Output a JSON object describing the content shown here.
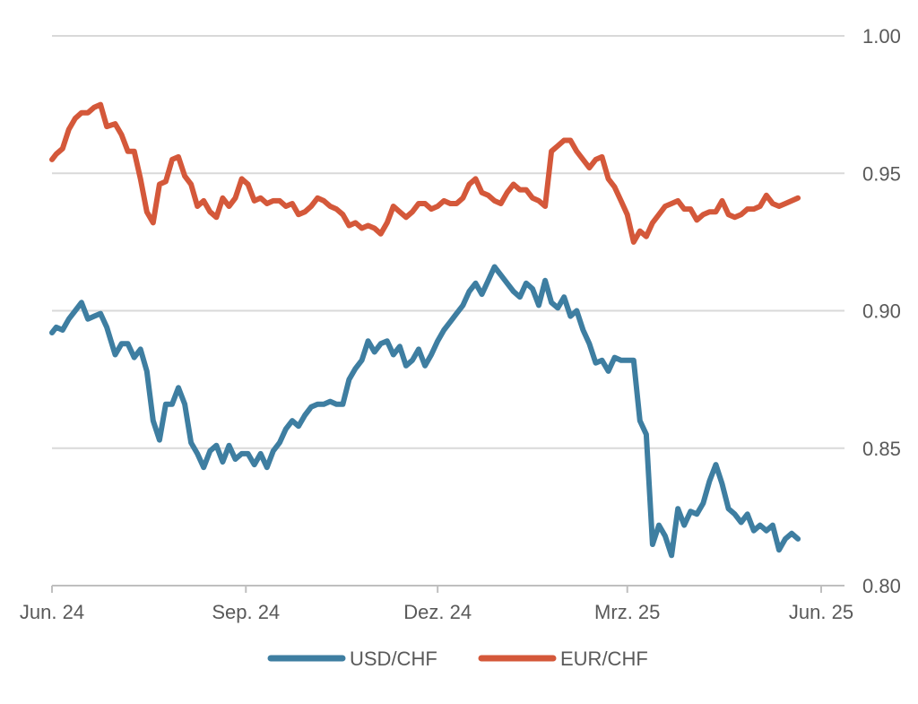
{
  "chart_data": {
    "type": "line",
    "title": "",
    "xlabel": "",
    "ylabel": "",
    "y_axis_position": "right",
    "ylim": [
      0.8,
      1.0
    ],
    "yticks": [
      "1.00",
      "0.95",
      "0.90",
      "0.85",
      "0.80"
    ],
    "ytick_values": [
      1.0,
      0.95,
      0.9,
      0.85,
      0.8
    ],
    "xlim": [
      "2024-06-01",
      "2025-06-02"
    ],
    "xticks": [
      {
        "label": "Jun. 24",
        "date": "2024-06-01"
      },
      {
        "label": "Sep. 24",
        "date": "2024-09-01"
      },
      {
        "label": "Dez. 24",
        "date": "2024-12-01"
      },
      {
        "label": "Mrz. 25",
        "date": "2025-03-01"
      },
      {
        "label": "Jun. 25",
        "date": "2025-06-01"
      }
    ],
    "grid": "horizontal",
    "legend_position": "bottom",
    "series": [
      {
        "name": "USD/CHF",
        "color": "#3e7ea1",
        "points": [
          [
            "2024-06-01",
            0.892
          ],
          [
            "2024-06-03",
            0.894
          ],
          [
            "2024-06-06",
            0.893
          ],
          [
            "2024-06-09",
            0.897
          ],
          [
            "2024-06-12",
            0.9
          ],
          [
            "2024-06-15",
            0.903
          ],
          [
            "2024-06-18",
            0.897
          ],
          [
            "2024-06-21",
            0.898
          ],
          [
            "2024-06-24",
            0.899
          ],
          [
            "2024-06-27",
            0.894
          ],
          [
            "2024-07-01",
            0.884
          ],
          [
            "2024-07-04",
            0.888
          ],
          [
            "2024-07-07",
            0.888
          ],
          [
            "2024-07-10",
            0.883
          ],
          [
            "2024-07-13",
            0.886
          ],
          [
            "2024-07-16",
            0.878
          ],
          [
            "2024-07-19",
            0.86
          ],
          [
            "2024-07-22",
            0.853
          ],
          [
            "2024-07-25",
            0.866
          ],
          [
            "2024-07-28",
            0.866
          ],
          [
            "2024-07-31",
            0.872
          ],
          [
            "2024-08-03",
            0.866
          ],
          [
            "2024-08-06",
            0.852
          ],
          [
            "2024-08-09",
            0.848
          ],
          [
            "2024-08-12",
            0.843
          ],
          [
            "2024-08-15",
            0.849
          ],
          [
            "2024-08-18",
            0.851
          ],
          [
            "2024-08-21",
            0.845
          ],
          [
            "2024-08-24",
            0.851
          ],
          [
            "2024-08-27",
            0.846
          ],
          [
            "2024-08-30",
            0.848
          ],
          [
            "2024-09-02",
            0.848
          ],
          [
            "2024-09-05",
            0.844
          ],
          [
            "2024-09-08",
            0.848
          ],
          [
            "2024-09-11",
            0.843
          ],
          [
            "2024-09-14",
            0.849
          ],
          [
            "2024-09-17",
            0.852
          ],
          [
            "2024-09-20",
            0.857
          ],
          [
            "2024-09-23",
            0.86
          ],
          [
            "2024-09-26",
            0.858
          ],
          [
            "2024-09-29",
            0.862
          ],
          [
            "2024-10-02",
            0.865
          ],
          [
            "2024-10-05",
            0.866
          ],
          [
            "2024-10-08",
            0.866
          ],
          [
            "2024-10-11",
            0.867
          ],
          [
            "2024-10-14",
            0.866
          ],
          [
            "2024-10-17",
            0.866
          ],
          [
            "2024-10-20",
            0.875
          ],
          [
            "2024-10-23",
            0.879
          ],
          [
            "2024-10-26",
            0.882
          ],
          [
            "2024-10-29",
            0.889
          ],
          [
            "2024-11-01",
            0.885
          ],
          [
            "2024-11-04",
            0.888
          ],
          [
            "2024-11-07",
            0.889
          ],
          [
            "2024-11-10",
            0.884
          ],
          [
            "2024-11-13",
            0.887
          ],
          [
            "2024-11-16",
            0.88
          ],
          [
            "2024-11-19",
            0.882
          ],
          [
            "2024-11-22",
            0.886
          ],
          [
            "2024-11-25",
            0.88
          ],
          [
            "2024-11-28",
            0.884
          ],
          [
            "2024-12-01",
            0.889
          ],
          [
            "2024-12-04",
            0.893
          ],
          [
            "2024-12-07",
            0.896
          ],
          [
            "2024-12-10",
            0.899
          ],
          [
            "2024-12-13",
            0.902
          ],
          [
            "2024-12-16",
            0.907
          ],
          [
            "2024-12-19",
            0.91
          ],
          [
            "2024-12-22",
            0.906
          ],
          [
            "2024-12-25",
            0.911
          ],
          [
            "2024-12-28",
            0.916
          ],
          [
            "2024-12-31",
            0.913
          ],
          [
            "2025-01-03",
            0.91
          ],
          [
            "2025-01-06",
            0.907
          ],
          [
            "2025-01-09",
            0.905
          ],
          [
            "2025-01-12",
            0.91
          ],
          [
            "2025-01-15",
            0.908
          ],
          [
            "2025-01-18",
            0.902
          ],
          [
            "2025-01-21",
            0.911
          ],
          [
            "2025-01-24",
            0.903
          ],
          [
            "2025-01-27",
            0.901
          ],
          [
            "2025-01-30",
            0.905
          ],
          [
            "2025-02-02",
            0.898
          ],
          [
            "2025-02-05",
            0.9
          ],
          [
            "2025-02-08",
            0.893
          ],
          [
            "2025-02-11",
            0.888
          ],
          [
            "2025-02-14",
            0.881
          ],
          [
            "2025-02-17",
            0.882
          ],
          [
            "2025-02-20",
            0.878
          ],
          [
            "2025-02-23",
            0.883
          ],
          [
            "2025-02-26",
            0.882
          ],
          [
            "2025-03-01",
            0.882
          ],
          [
            "2025-03-04",
            0.882
          ],
          [
            "2025-03-07",
            0.86
          ],
          [
            "2025-03-10",
            0.855
          ],
          [
            "2025-03-13",
            0.815
          ],
          [
            "2025-03-16",
            0.822
          ],
          [
            "2025-03-19",
            0.818
          ],
          [
            "2025-03-22",
            0.811
          ],
          [
            "2025-03-25",
            0.828
          ],
          [
            "2025-03-28",
            0.822
          ],
          [
            "2025-03-31",
            0.827
          ],
          [
            "2025-04-03",
            0.826
          ],
          [
            "2025-04-06",
            0.83
          ],
          [
            "2025-04-09",
            0.838
          ],
          [
            "2025-04-12",
            0.844
          ],
          [
            "2025-04-15",
            0.837
          ],
          [
            "2025-04-18",
            0.828
          ],
          [
            "2025-04-21",
            0.826
          ],
          [
            "2025-04-24",
            0.823
          ],
          [
            "2025-04-27",
            0.826
          ],
          [
            "2025-04-30",
            0.82
          ],
          [
            "2025-05-03",
            0.822
          ],
          [
            "2025-05-06",
            0.82
          ],
          [
            "2025-05-09",
            0.822
          ],
          [
            "2025-05-12",
            0.813
          ],
          [
            "2025-05-15",
            0.817
          ],
          [
            "2025-05-18",
            0.819
          ],
          [
            "2025-05-21",
            0.817
          ]
        ]
      },
      {
        "name": "EUR/CHF",
        "color": "#d4583a",
        "points": [
          [
            "2024-06-01",
            0.955
          ],
          [
            "2024-06-03",
            0.957
          ],
          [
            "2024-06-06",
            0.959
          ],
          [
            "2024-06-09",
            0.966
          ],
          [
            "2024-06-12",
            0.97
          ],
          [
            "2024-06-15",
            0.972
          ],
          [
            "2024-06-18",
            0.972
          ],
          [
            "2024-06-21",
            0.974
          ],
          [
            "2024-06-24",
            0.975
          ],
          [
            "2024-06-27",
            0.967
          ],
          [
            "2024-07-01",
            0.968
          ],
          [
            "2024-07-04",
            0.964
          ],
          [
            "2024-07-07",
            0.958
          ],
          [
            "2024-07-10",
            0.958
          ],
          [
            "2024-07-13",
            0.948
          ],
          [
            "2024-07-16",
            0.936
          ],
          [
            "2024-07-19",
            0.932
          ],
          [
            "2024-07-22",
            0.946
          ],
          [
            "2024-07-25",
            0.947
          ],
          [
            "2024-07-28",
            0.955
          ],
          [
            "2024-07-31",
            0.956
          ],
          [
            "2024-08-03",
            0.949
          ],
          [
            "2024-08-06",
            0.946
          ],
          [
            "2024-08-09",
            0.938
          ],
          [
            "2024-08-12",
            0.94
          ],
          [
            "2024-08-15",
            0.936
          ],
          [
            "2024-08-18",
            0.934
          ],
          [
            "2024-08-21",
            0.941
          ],
          [
            "2024-08-24",
            0.938
          ],
          [
            "2024-08-27",
            0.941
          ],
          [
            "2024-08-30",
            0.948
          ],
          [
            "2024-09-02",
            0.946
          ],
          [
            "2024-09-05",
            0.94
          ],
          [
            "2024-09-08",
            0.941
          ],
          [
            "2024-09-11",
            0.939
          ],
          [
            "2024-09-14",
            0.94
          ],
          [
            "2024-09-17",
            0.94
          ],
          [
            "2024-09-20",
            0.938
          ],
          [
            "2024-09-23",
            0.939
          ],
          [
            "2024-09-26",
            0.935
          ],
          [
            "2024-09-29",
            0.936
          ],
          [
            "2024-10-02",
            0.938
          ],
          [
            "2024-10-05",
            0.941
          ],
          [
            "2024-10-08",
            0.94
          ],
          [
            "2024-10-11",
            0.938
          ],
          [
            "2024-10-14",
            0.937
          ],
          [
            "2024-10-17",
            0.935
          ],
          [
            "2024-10-20",
            0.931
          ],
          [
            "2024-10-23",
            0.932
          ],
          [
            "2024-10-26",
            0.93
          ],
          [
            "2024-10-29",
            0.931
          ],
          [
            "2024-11-01",
            0.93
          ],
          [
            "2024-11-04",
            0.928
          ],
          [
            "2024-11-07",
            0.932
          ],
          [
            "2024-11-10",
            0.938
          ],
          [
            "2024-11-13",
            0.936
          ],
          [
            "2024-11-16",
            0.934
          ],
          [
            "2024-11-19",
            0.936
          ],
          [
            "2024-11-22",
            0.939
          ],
          [
            "2024-11-25",
            0.939
          ],
          [
            "2024-11-28",
            0.937
          ],
          [
            "2024-12-01",
            0.938
          ],
          [
            "2024-12-04",
            0.94
          ],
          [
            "2024-12-07",
            0.939
          ],
          [
            "2024-12-10",
            0.939
          ],
          [
            "2024-12-13",
            0.941
          ],
          [
            "2024-12-16",
            0.946
          ],
          [
            "2024-12-19",
            0.948
          ],
          [
            "2024-12-22",
            0.943
          ],
          [
            "2024-12-25",
            0.942
          ],
          [
            "2024-12-28",
            0.94
          ],
          [
            "2024-12-31",
            0.939
          ],
          [
            "2025-01-03",
            0.943
          ],
          [
            "2025-01-06",
            0.946
          ],
          [
            "2025-01-09",
            0.944
          ],
          [
            "2025-01-12",
            0.944
          ],
          [
            "2025-01-15",
            0.941
          ],
          [
            "2025-01-18",
            0.94
          ],
          [
            "2025-01-21",
            0.938
          ],
          [
            "2025-01-24",
            0.958
          ],
          [
            "2025-01-27",
            0.96
          ],
          [
            "2025-01-30",
            0.962
          ],
          [
            "2025-02-02",
            0.962
          ],
          [
            "2025-02-05",
            0.958
          ],
          [
            "2025-02-08",
            0.955
          ],
          [
            "2025-02-11",
            0.952
          ],
          [
            "2025-02-14",
            0.955
          ],
          [
            "2025-02-17",
            0.956
          ],
          [
            "2025-02-20",
            0.948
          ],
          [
            "2025-02-23",
            0.945
          ],
          [
            "2025-02-26",
            0.94
          ],
          [
            "2025-03-01",
            0.935
          ],
          [
            "2025-03-04",
            0.925
          ],
          [
            "2025-03-07",
            0.929
          ],
          [
            "2025-03-10",
            0.927
          ],
          [
            "2025-03-13",
            0.932
          ],
          [
            "2025-03-16",
            0.935
          ],
          [
            "2025-03-19",
            0.938
          ],
          [
            "2025-03-22",
            0.939
          ],
          [
            "2025-03-25",
            0.94
          ],
          [
            "2025-03-28",
            0.937
          ],
          [
            "2025-03-31",
            0.937
          ],
          [
            "2025-04-03",
            0.933
          ],
          [
            "2025-04-06",
            0.935
          ],
          [
            "2025-04-09",
            0.936
          ],
          [
            "2025-04-12",
            0.936
          ],
          [
            "2025-04-15",
            0.94
          ],
          [
            "2025-04-18",
            0.935
          ],
          [
            "2025-04-21",
            0.934
          ],
          [
            "2025-04-24",
            0.935
          ],
          [
            "2025-04-27",
            0.937
          ],
          [
            "2025-04-30",
            0.937
          ],
          [
            "2025-05-03",
            0.938
          ],
          [
            "2025-05-06",
            0.942
          ],
          [
            "2025-05-09",
            0.939
          ],
          [
            "2025-05-12",
            0.938
          ],
          [
            "2025-05-15",
            0.939
          ],
          [
            "2025-05-18",
            0.94
          ],
          [
            "2025-05-21",
            0.941
          ]
        ]
      }
    ]
  }
}
